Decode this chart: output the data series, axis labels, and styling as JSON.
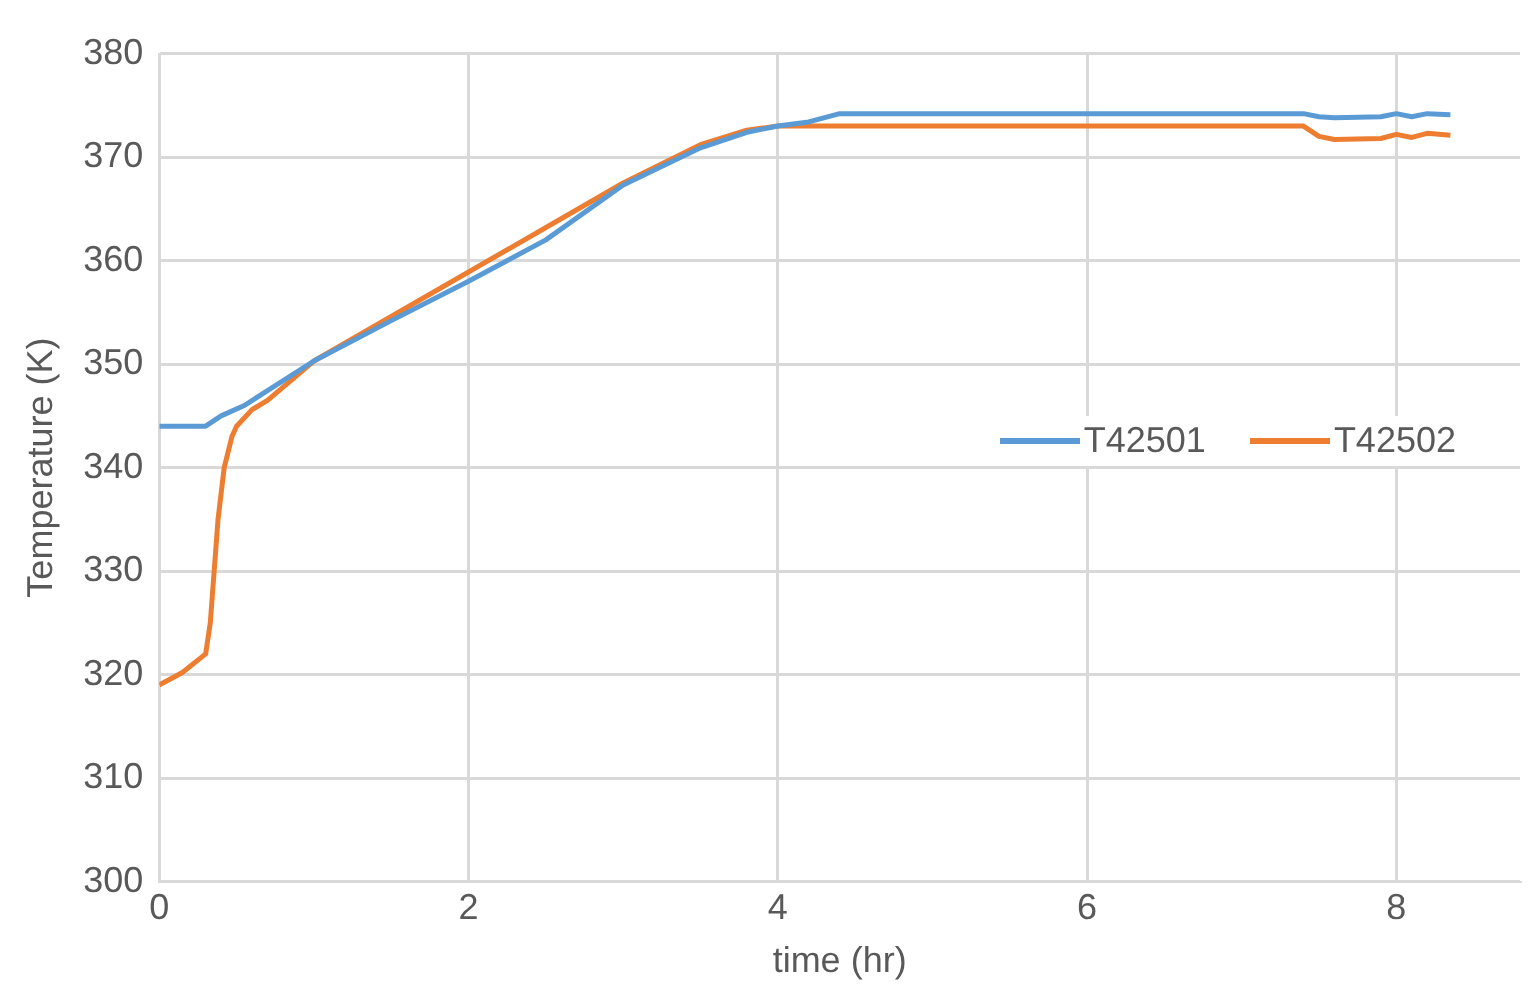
{
  "chart_data": {
    "type": "line",
    "xlabel": "time (hr)",
    "ylabel": "Temperature (K)",
    "xlim": [
      0,
      8.8
    ],
    "xticks": [
      0,
      2,
      4,
      6,
      8
    ],
    "ylim": [
      300,
      380
    ],
    "yticks": [
      300,
      310,
      320,
      330,
      340,
      350,
      360,
      370,
      380
    ],
    "grid": true,
    "legend": "right",
    "marker": "none",
    "line_style": "solid",
    "series": [
      {
        "name": "T42501",
        "color": "#5b9bd5",
        "x": [
          0,
          0.3,
          0.4,
          0.55,
          1,
          1.5,
          2,
          2.5,
          3,
          3.5,
          3.8,
          4,
          4.2,
          4.4,
          7.4,
          7.5,
          7.6,
          7.9,
          8,
          8.1,
          8.2,
          8.35
        ],
        "values": [
          344,
          344,
          345,
          346,
          350.3,
          354.2,
          358,
          362,
          367.3,
          370.9,
          372.4,
          373,
          373.4,
          374.2,
          374.2,
          373.9,
          373.8,
          373.9,
          374.2,
          373.9,
          374.2,
          374.1
        ]
      },
      {
        "name": "T42502",
        "color": "#ed7d31",
        "x": [
          0,
          0.15,
          0.3,
          0.33,
          0.38,
          0.42,
          0.47,
          0.5,
          0.6,
          0.7,
          1,
          3,
          3.5,
          3.8,
          4,
          4.4,
          7.4,
          7.5,
          7.6,
          7.9,
          8,
          8.1,
          8.2,
          8.35
        ],
        "values": [
          319,
          320.2,
          322,
          325,
          335,
          340,
          343,
          344,
          345.6,
          346.5,
          350.3,
          367.5,
          371.2,
          372.6,
          373,
          373,
          373,
          372,
          371.7,
          371.8,
          372.2,
          371.9,
          372.3,
          372.1
        ]
      }
    ]
  }
}
